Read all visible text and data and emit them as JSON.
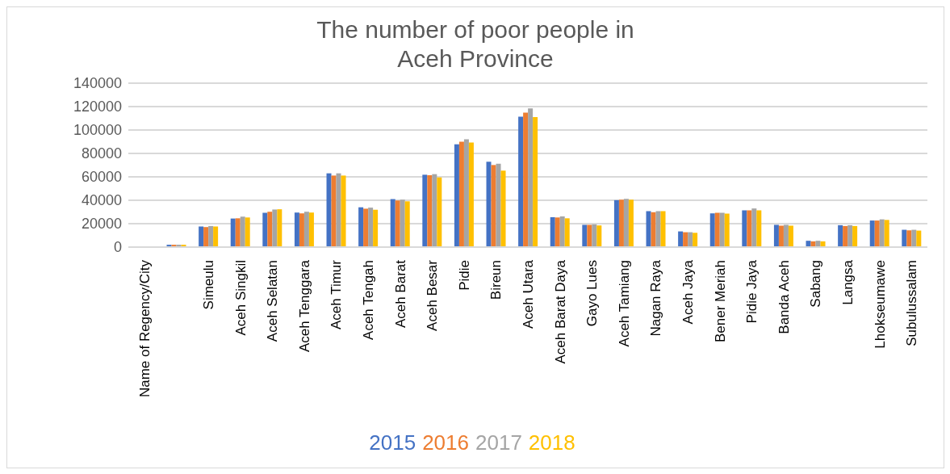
{
  "chart_data": {
    "type": "bar",
    "title": "The number of poor people in Aceh Province",
    "categories": [
      "Name of Regency/City",
      null,
      "Simeulu",
      "Aceh Singkil",
      "Aceh Selatan",
      "Aceh Tenggara",
      "Aceh Timur",
      "Aceh Tengah",
      "Aceh Barat",
      "Aceh Besar",
      "Pidie",
      "Bireun",
      "Aceh Utara",
      "Aceh Barat Daya",
      "Gayo Lues",
      "Aceh Tamiang",
      "Nagan Raya",
      "Aceh Jaya",
      "Bener Meriah",
      "Pidie Jaya",
      "Banda Aceh",
      "Sabang",
      "Langsa",
      "Lhokseumawe",
      "Subulussalam"
    ],
    "series": [
      {
        "name": "2015",
        "color": "#4472c4",
        "values": [
          null,
          2000,
          17600,
          24400,
          29300,
          29500,
          63000,
          34000,
          41000,
          61800,
          87800,
          72900,
          111300,
          25500,
          19000,
          40100,
          30700,
          13400,
          28800,
          31400,
          19000,
          5400,
          18700,
          22700,
          14800
        ]
      },
      {
        "name": "2016",
        "color": "#ed7d31",
        "values": [
          null,
          2000,
          17100,
          24600,
          30200,
          28800,
          61100,
          32800,
          39800,
          61400,
          90000,
          70100,
          114800,
          25300,
          19000,
          40500,
          29800,
          12700,
          29300,
          31400,
          18300,
          4900,
          18000,
          22700,
          14300
        ]
      },
      {
        "name": "2017",
        "color": "#a5a5a5",
        "values": [
          null,
          2000,
          18000,
          26000,
          32100,
          30200,
          63000,
          33700,
          40500,
          62300,
          92100,
          71200,
          118500,
          26200,
          19400,
          41200,
          30700,
          12700,
          29300,
          33000,
          19000,
          5400,
          18700,
          23700,
          14800
        ]
      },
      {
        "name": "2018",
        "color": "#ffc000",
        "values": [
          null,
          2000,
          17600,
          25300,
          32300,
          29500,
          61100,
          31900,
          39100,
          59500,
          89300,
          65300,
          111000,
          24600,
          18500,
          40500,
          30700,
          12200,
          28600,
          31400,
          18300,
          4900,
          18000,
          23200,
          14100
        ]
      }
    ],
    "ylim": [
      0,
      140000
    ],
    "yticks": [
      0,
      20000,
      40000,
      60000,
      80000,
      100000,
      120000,
      140000
    ],
    "grid": "y",
    "legend": "bottom"
  }
}
